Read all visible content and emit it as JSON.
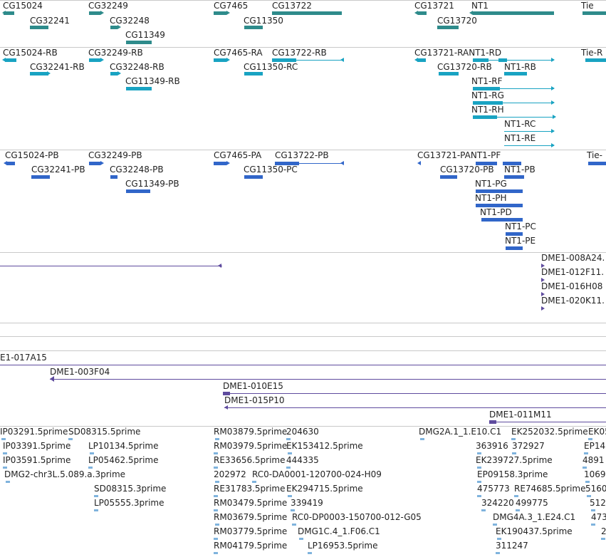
{
  "colors": {
    "gene": "#2e8b8b",
    "transcript_rna": "#19a3c2",
    "transcript_protein": "#3166c9",
    "clone": "#5e4b9e",
    "est": "#7fb3dd",
    "separator": "#c9c9c9"
  },
  "tracks": {
    "genes": {
      "labels": [
        "CG15024",
        "CG32241",
        "CG32249",
        "CG32248",
        "CG11349",
        "CG7465",
        "CG11350",
        "CG13722",
        "CG13721",
        "CG13720",
        "NT1",
        "Tie"
      ]
    },
    "transcripts_rna": {
      "labels": [
        "CG15024-RB",
        "CG32241-RB",
        "CG32249-RB",
        "CG32248-RB",
        "CG11349-RB",
        "CG7465-RA",
        "CG11350-RC",
        "CG13722-RB",
        "CG13721-RANT1-RD",
        "CG13720-RB",
        "NT1-RB",
        "NT1-RF",
        "NT1-RG",
        "NT1-RH",
        "NT1-RC",
        "NT1-RE",
        "Tie-R"
      ]
    },
    "transcripts_protein": {
      "labels": [
        "CG15024-PB",
        "CG32241-PB",
        "CG32249-PB",
        "CG32248-PB",
        "CG11349-PB",
        "CG7465-PA",
        "CG11350-PC",
        "CG13722-PB",
        "CG13721-PANT1-PF",
        "CG13720-PB",
        "NT1-PB",
        "NT1-PG",
        "NT1-PH",
        "NT1-PD",
        "NT1-PC",
        "NT1-PE",
        "Tie-"
      ]
    },
    "clones_top": {
      "labels": [
        "DME1-008A24.",
        "DME1-012F11.",
        "DME1-016H08",
        "DME1-020K11."
      ]
    },
    "clones_bottom": {
      "labels": [
        "E1-017A15",
        "DME1-003F04",
        "DME1-010E15",
        "DME1-015P10",
        "DME1-011M11"
      ]
    },
    "ests": {
      "labels": [
        "IP03291.5prime",
        "SD08315.5prime",
        "IP03391.5prime",
        "LP10134.5prime",
        "IP03591.5prime",
        "LP05462.5prime",
        "DMG2-chr3L.5.089.a.3prime",
        "SD08315.3prime",
        "LP05555.3prime",
        "RM03879.5prime",
        "204630",
        "RM03979.5prime",
        "EK153412.5prime",
        "RE33656.5prime",
        "444335",
        "202972",
        "RC0-DA0001-120700-024-H09",
        "RE31783.5prime",
        "EK294715.5prime",
        "RM03479.5prime",
        "339419",
        "RM03679.5prime",
        "RC0-DP0003-150700-012-G05",
        "RM03779.5prime",
        "DMG1C.4_1.F06.C1",
        "RM04179.5prime",
        "LP16953.5prime",
        "DMG2A.1_1.E10.C1",
        "EK252032.5prime",
        "EK05",
        "363916",
        "372927",
        "EP14",
        "EK239727.5prime",
        "4891",
        "EP09158.3prime",
        "1069",
        "475773",
        "RE74685.5prime",
        "5160",
        "324220",
        "499775",
        "512",
        "DMG4A.3_1.E24.C1",
        "473",
        "EK190437.5prime",
        "2",
        "311247"
      ]
    }
  }
}
